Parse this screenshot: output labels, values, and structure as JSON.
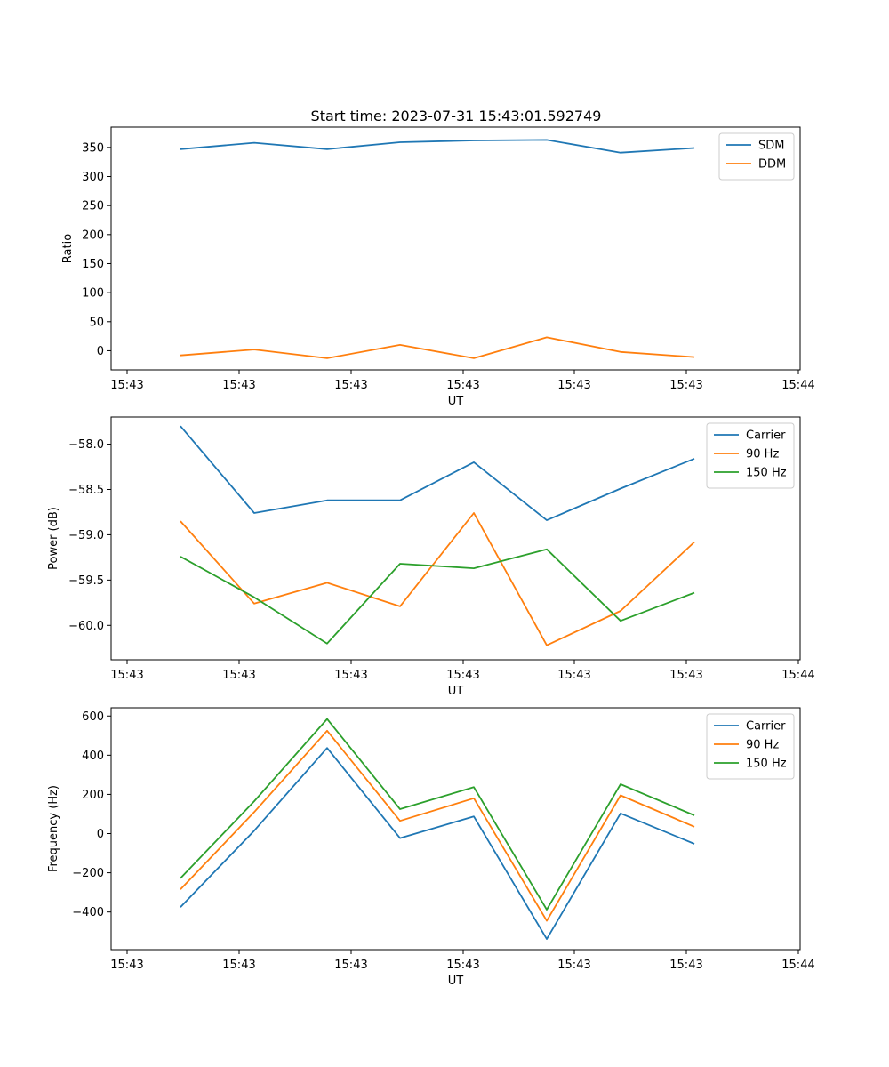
{
  "title": "Start time: 2023-07-31 15:43:01.592749",
  "colors": {
    "blue": "#1f77b4",
    "orange": "#ff7f0e",
    "green": "#2ca02c"
  },
  "chart_data": [
    {
      "type": "line",
      "title": "Start time: 2023-07-31 15:43:01.592749",
      "xlabel": "UT",
      "ylabel": "Ratio",
      "x_tick_labels": [
        "15:43",
        "15:43",
        "15:43",
        "15:43",
        "15:43",
        "15:43",
        "15:44"
      ],
      "y_ticks": [
        0,
        50,
        100,
        150,
        200,
        250,
        300,
        350
      ],
      "ylim": [
        -33,
        385
      ],
      "legend": "top-right",
      "series": [
        {
          "name": "SDM",
          "color": "#1f77b4",
          "values": [
            347,
            358,
            347,
            359,
            362,
            363,
            341,
            349
          ]
        },
        {
          "name": "DDM",
          "color": "#ff7f0e",
          "values": [
            -8,
            2,
            -13,
            10,
            -13,
            23,
            -2,
            -11
          ]
        }
      ]
    },
    {
      "type": "line",
      "title": "",
      "xlabel": "UT",
      "ylabel": "Power (dB)",
      "x_tick_labels": [
        "15:43",
        "15:43",
        "15:43",
        "15:43",
        "15:43",
        "15:43",
        "15:44"
      ],
      "y_ticks": [
        -58.0,
        -58.5,
        -59.0,
        -59.5,
        -60.0
      ],
      "y_tick_labels": [
        "−58.0",
        "−58.5",
        "−59.0",
        "−59.5",
        "−60.0"
      ],
      "ylim": [
        -60.38,
        -57.7
      ],
      "legend": "top-right",
      "series": [
        {
          "name": "Carrier",
          "color": "#1f77b4",
          "values": [
            -57.8,
            -58.76,
            -58.62,
            -58.62,
            -58.2,
            -58.84,
            -58.49,
            -58.16
          ]
        },
        {
          "name": "90 Hz",
          "color": "#ff7f0e",
          "values": [
            -58.85,
            -59.76,
            -59.53,
            -59.79,
            -58.76,
            -60.22,
            -59.84,
            -59.08
          ]
        },
        {
          "name": "150 Hz",
          "color": "#2ca02c",
          "values": [
            -59.24,
            -59.69,
            -60.2,
            -59.32,
            -59.37,
            -59.16,
            -59.95,
            -59.64
          ]
        }
      ]
    },
    {
      "type": "line",
      "title": "",
      "xlabel": "UT",
      "ylabel": "Frequency (Hz)",
      "x_tick_labels": [
        "15:43",
        "15:43",
        "15:43",
        "15:43",
        "15:43",
        "15:43",
        "15:44"
      ],
      "y_ticks": [
        -400,
        -200,
        0,
        200,
        400,
        600
      ],
      "y_tick_labels": [
        "−400",
        "−200",
        "0",
        "200",
        "400",
        "600"
      ],
      "ylim": [
        -592,
        642
      ],
      "legend": "top-right",
      "series": [
        {
          "name": "Carrier",
          "color": "#1f77b4",
          "values": [
            -375,
            15,
            437,
            -23,
            87,
            -538,
            103,
            -52
          ]
        },
        {
          "name": "90 Hz",
          "color": "#ff7f0e",
          "values": [
            -285,
            110,
            525,
            65,
            180,
            -445,
            195,
            35
          ]
        },
        {
          "name": "150 Hz",
          "color": "#2ca02c",
          "values": [
            -228,
            165,
            585,
            125,
            237,
            -388,
            252,
            93
          ]
        }
      ]
    }
  ]
}
